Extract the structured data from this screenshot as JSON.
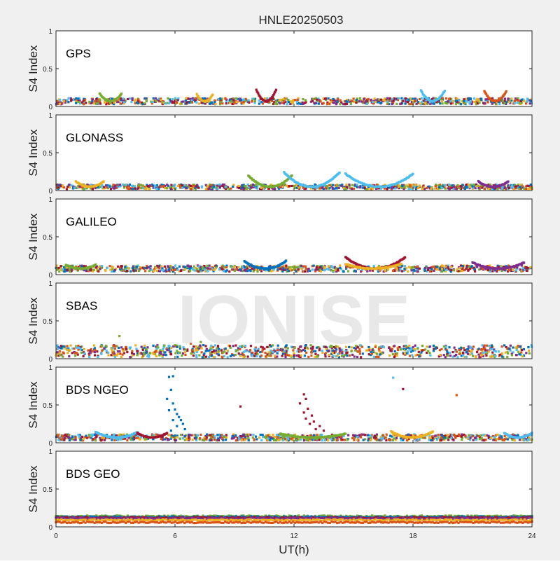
{
  "chart_data": {
    "type": "scatter",
    "title": "HNLE20250503",
    "xlabel": "UT(h)",
    "ylabel": "S4 Index",
    "xlim": [
      0,
      24
    ],
    "ylim": [
      0,
      1
    ],
    "xticks": [
      "0",
      "6",
      "12",
      "18",
      "24"
    ],
    "yticks": [
      "0",
      "0.5",
      "1"
    ],
    "watermark": "IONISE",
    "series_colors": [
      "#0072bd",
      "#d95319",
      "#edb120",
      "#7e2f8e",
      "#77ac30",
      "#4dbeee",
      "#a2142f"
    ],
    "panels": [
      {
        "label": "GPS",
        "baseline": 0.07,
        "spread": 0.04,
        "arcs": [
          {
            "color": 5,
            "x0": 18.4,
            "x1": 19.6,
            "peak": 0.21
          },
          {
            "color": 1,
            "x0": 21.6,
            "x1": 22.7,
            "peak": 0.2
          },
          {
            "color": 6,
            "x0": 10.1,
            "x1": 11.1,
            "peak": 0.22
          },
          {
            "color": 4,
            "x0": 2.2,
            "x1": 3.3,
            "peak": 0.17
          },
          {
            "color": 2,
            "x0": 7.1,
            "x1": 7.9,
            "peak": 0.16
          }
        ],
        "points": []
      },
      {
        "label": "GLONASS",
        "baseline": 0.05,
        "spread": 0.03,
        "arcs": [
          {
            "color": 4,
            "x0": 9.7,
            "x1": 11.9,
            "peak": 0.2
          },
          {
            "color": 5,
            "x0": 11.5,
            "x1": 14.3,
            "peak": 0.24
          },
          {
            "color": 5,
            "x0": 14.6,
            "x1": 18.0,
            "peak": 0.22
          },
          {
            "color": 2,
            "x0": 1.0,
            "x1": 2.4,
            "peak": 0.12
          },
          {
            "color": 3,
            "x0": 21.3,
            "x1": 22.8,
            "peak": 0.12
          }
        ],
        "points": []
      },
      {
        "label": "GALILEO",
        "baseline": 0.08,
        "spread": 0.04,
        "arcs": [
          {
            "color": 6,
            "x0": 14.6,
            "x1": 17.6,
            "peak": 0.23
          },
          {
            "color": 0,
            "x0": 9.5,
            "x1": 11.6,
            "peak": 0.18
          },
          {
            "color": 3,
            "x0": 21.0,
            "x1": 23.6,
            "peak": 0.16
          },
          {
            "color": 2,
            "x0": 14.6,
            "x1": 17.4,
            "peak": 0.14
          },
          {
            "color": 4,
            "x0": 0.5,
            "x1": 2.0,
            "peak": 0.13
          }
        ],
        "points": []
      },
      {
        "label": "SBAS",
        "baseline": 0.1,
        "spread": 0.08,
        "arcs": [],
        "points": [
          {
            "x": 3.2,
            "y": 0.3,
            "color": 4
          },
          {
            "x": 7.3,
            "y": 0.22,
            "color": 4
          },
          {
            "x": 6.8,
            "y": 0.2,
            "color": 1
          }
        ]
      },
      {
        "label": "BDS NGEO",
        "baseline": 0.07,
        "spread": 0.04,
        "arcs": [
          {
            "color": 5,
            "x0": 2.0,
            "x1": 4.1,
            "peak": 0.14
          },
          {
            "color": 6,
            "x0": 4.1,
            "x1": 5.6,
            "peak": 0.13
          },
          {
            "color": 4,
            "x0": 11.3,
            "x1": 14.6,
            "peak": 0.12
          },
          {
            "color": 2,
            "x0": 16.9,
            "x1": 19.0,
            "peak": 0.15
          },
          {
            "color": 5,
            "x0": 22.6,
            "x1": 24.0,
            "peak": 0.13
          }
        ],
        "points": [
          {
            "x": 5.7,
            "y": 0.87,
            "color": 0
          },
          {
            "x": 5.9,
            "y": 0.88,
            "color": 0
          },
          {
            "x": 5.8,
            "y": 0.7,
            "color": 0
          },
          {
            "x": 5.6,
            "y": 0.58,
            "color": 0
          },
          {
            "x": 5.9,
            "y": 0.52,
            "color": 0
          },
          {
            "x": 6.0,
            "y": 0.44,
            "color": 0
          },
          {
            "x": 5.7,
            "y": 0.43,
            "color": 0
          },
          {
            "x": 6.1,
            "y": 0.38,
            "color": 0
          },
          {
            "x": 6.2,
            "y": 0.34,
            "color": 0
          },
          {
            "x": 6.3,
            "y": 0.3,
            "color": 0
          },
          {
            "x": 5.9,
            "y": 0.3,
            "color": 0
          },
          {
            "x": 6.4,
            "y": 0.25,
            "color": 0
          },
          {
            "x": 6.1,
            "y": 0.22,
            "color": 0
          },
          {
            "x": 6.5,
            "y": 0.18,
            "color": 0
          },
          {
            "x": 5.8,
            "y": 0.16,
            "color": 0
          },
          {
            "x": 9.3,
            "y": 0.48,
            "color": 6
          },
          {
            "x": 12.5,
            "y": 0.64,
            "color": 6
          },
          {
            "x": 12.6,
            "y": 0.58,
            "color": 6
          },
          {
            "x": 12.3,
            "y": 0.52,
            "color": 6
          },
          {
            "x": 12.7,
            "y": 0.45,
            "color": 6
          },
          {
            "x": 12.5,
            "y": 0.4,
            "color": 6
          },
          {
            "x": 12.9,
            "y": 0.36,
            "color": 6
          },
          {
            "x": 12.6,
            "y": 0.32,
            "color": 6
          },
          {
            "x": 13.0,
            "y": 0.28,
            "color": 6
          },
          {
            "x": 12.8,
            "y": 0.25,
            "color": 6
          },
          {
            "x": 13.3,
            "y": 0.22,
            "color": 6
          },
          {
            "x": 13.1,
            "y": 0.18,
            "color": 6
          },
          {
            "x": 13.5,
            "y": 0.16,
            "color": 6
          },
          {
            "x": 17.0,
            "y": 0.86,
            "color": 5
          },
          {
            "x": 17.5,
            "y": 0.71,
            "color": 6
          },
          {
            "x": 20.2,
            "y": 0.63,
            "color": 1
          }
        ]
      },
      {
        "label": "BDS GEO",
        "baseline": 0.1,
        "spread": 0.02,
        "arcs": [],
        "points": [],
        "bands": [
          {
            "color": 4,
            "y": 0.14
          },
          {
            "color": 0,
            "y": 0.13
          },
          {
            "color": 6,
            "y": 0.12
          },
          {
            "color": 3,
            "y": 0.11
          },
          {
            "color": 2,
            "y": 0.09
          },
          {
            "color": 1,
            "y": 0.06
          }
        ]
      }
    ]
  }
}
